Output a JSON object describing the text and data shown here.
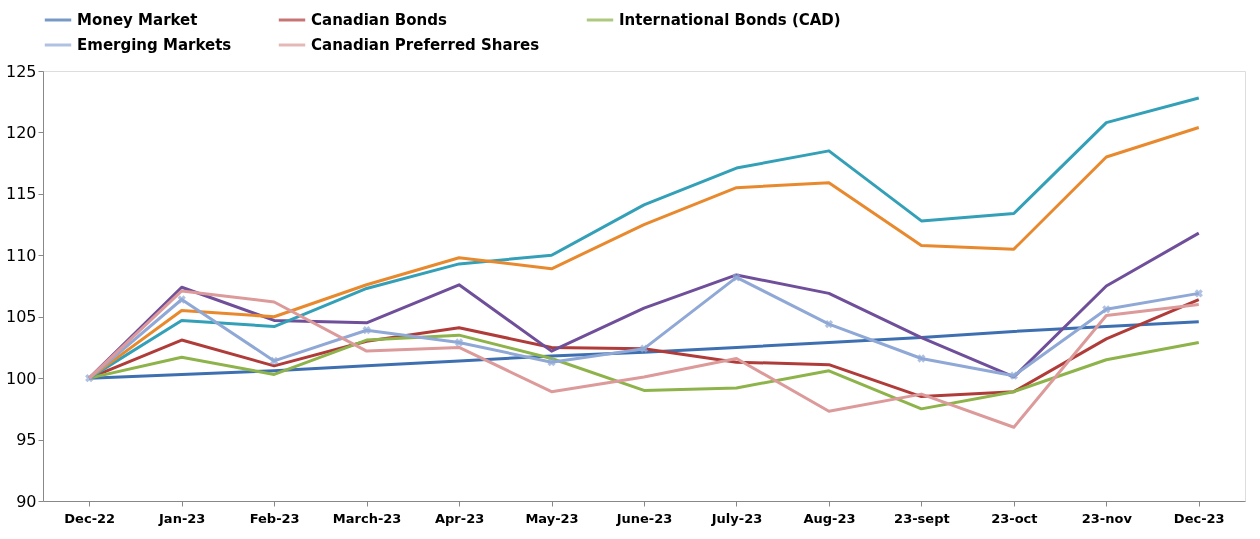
{
  "chart_data": {
    "type": "line",
    "categories": [
      "Dec-22",
      "Jan-23",
      "Feb-23",
      "March-23",
      "Apr-23",
      "May-23",
      "June-23",
      "July-23",
      "Aug-23",
      "23-sept",
      "23-oct",
      "23-nov",
      "Dec-23"
    ],
    "series": [
      {
        "name": "Money Market",
        "color": "#3e6fb0",
        "values": [
          100,
          100.3,
          100.6,
          101,
          101.4,
          101.8,
          102.1,
          102.5,
          102.9,
          103.3,
          103.8,
          104.2,
          104.6
        ]
      },
      {
        "name": "Canadian Bonds",
        "color": "#b03c3a",
        "values": [
          100,
          103.1,
          101,
          103,
          104.1,
          102.5,
          102.4,
          101.3,
          101.1,
          98.5,
          98.9,
          103.2,
          106.4
        ]
      },
      {
        "name": "International Bonds (CAD)",
        "color": "#8db34a",
        "values": [
          100,
          101.7,
          100.3,
          103.1,
          103.5,
          101.6,
          99,
          99.2,
          100.6,
          97.5,
          98.9,
          101.5,
          102.9
        ]
      },
      {
        "color": "#6f4f9a",
        "values": [
          100,
          107.4,
          104.7,
          104.5,
          107.6,
          102.2,
          105.7,
          108.4,
          106.9,
          103.3,
          100.1,
          107.5,
          111.8
        ]
      },
      {
        "color": "#33a0b8",
        "values": [
          100,
          104.7,
          104.2,
          107.3,
          109.3,
          110,
          114.1,
          117.1,
          118.5,
          112.8,
          113.4,
          120.8,
          122.8
        ]
      },
      {
        "color": "#e8892e",
        "values": [
          100,
          105.5,
          105,
          107.6,
          109.8,
          108.9,
          112.5,
          115.5,
          115.9,
          110.8,
          110.5,
          118,
          120.4
        ]
      },
      {
        "name": "Emerging Markets",
        "color": "#8fa8d6",
        "marker": "cross",
        "values": [
          100,
          106.4,
          101.4,
          103.9,
          102.9,
          101.3,
          102.4,
          108.2,
          104.4,
          101.6,
          100.2,
          105.6,
          106.9
        ]
      },
      {
        "name": "Canadian Preferred Shares",
        "color": "#dc9a9a",
        "values": [
          100,
          107.1,
          106.2,
          102.2,
          102.5,
          98.9,
          100.1,
          101.6,
          97.3,
          98.7,
          96,
          105.1,
          106
        ]
      }
    ],
    "ylim": [
      90,
      125
    ],
    "yticks": [
      90,
      95,
      100,
      105,
      110,
      115,
      120,
      125
    ],
    "grid": false,
    "legend": "top",
    "marker": "none",
    "line_style": "solid"
  }
}
